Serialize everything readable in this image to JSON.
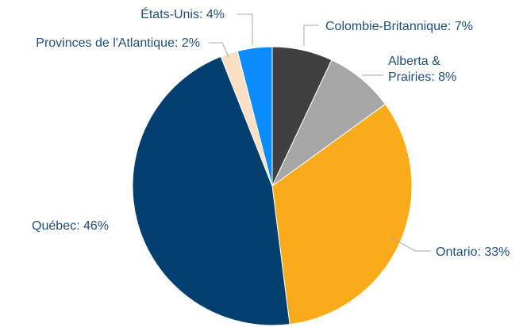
{
  "chart_data": {
    "type": "pie",
    "title": "",
    "slices": [
      {
        "label": "Colombie-Britannique: 7%",
        "label_lines": [
          "Colombie-Britannique: 7%"
        ],
        "name": "Colombie-Britannique",
        "value": 7,
        "color": "#404040"
      },
      {
        "label": "Alberta & Prairies: 8%",
        "label_lines": [
          "Alberta &",
          "Prairies: 8%"
        ],
        "name": "Alberta & Prairies",
        "value": 8,
        "color": "#a6a6a6"
      },
      {
        "label": "Ontario: 33%",
        "label_lines": [
          "Ontario: 33%"
        ],
        "name": "Ontario",
        "value": 33,
        "color": "#f9ab1a"
      },
      {
        "label": "Québec: 46%",
        "label_lines": [
          "Québec: 46%"
        ],
        "name": "Québec",
        "value": 46,
        "color": "#003f6f"
      },
      {
        "label": "Provinces de l'Atlantique: 2%",
        "label_lines": [
          "Provinces de l'Atlantique: 2%"
        ],
        "name": "Provinces de l'Atlantique",
        "value": 2,
        "color": "#fbe0c6"
      },
      {
        "label": "États-Unis: 4%",
        "label_lines": [
          "États-Unis: 4%"
        ],
        "name": "États-Unis",
        "value": 4,
        "color": "#0a8cff"
      }
    ],
    "start_angle_deg": 0,
    "direction": "clockwise",
    "label_color": "#1f4e79",
    "leader_color": "#a6a6a6"
  }
}
